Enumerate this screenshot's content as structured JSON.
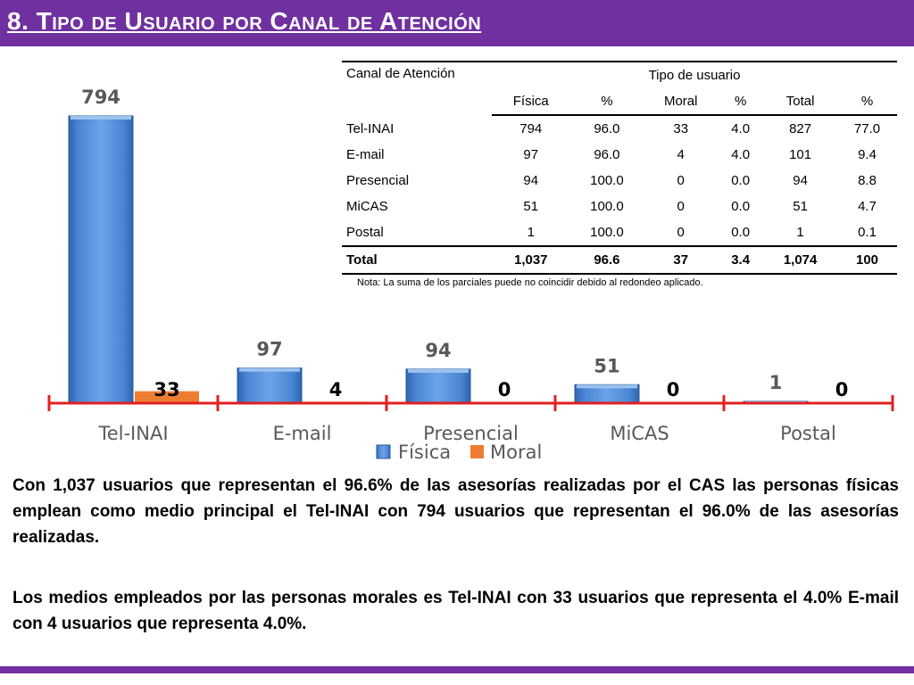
{
  "header": {
    "title": "8. Tipo de Usuario por Canal de Atención"
  },
  "chart_data": {
    "type": "bar",
    "categories": [
      "Tel-INAI",
      "E-mail",
      "Presencial",
      "MiCAS",
      "Postal"
    ],
    "series": [
      {
        "name": "Física",
        "values": [
          794,
          97,
          94,
          51,
          1
        ],
        "color": "#4a86d4"
      },
      {
        "name": "Moral",
        "values": [
          33,
          4,
          0,
          0,
          0
        ],
        "color": "#ed7d31"
      }
    ],
    "ylim": [
      0,
      794
    ],
    "grid": false,
    "legend": "bottom-center",
    "axis_color": "#e02020",
    "label_colors": [
      "#595959",
      "#000000"
    ]
  },
  "table": {
    "header_first": "Canal de Atención",
    "header_group": "Tipo de usuario",
    "subheaders": [
      "Física",
      "%",
      "Moral",
      "%",
      "Total",
      "%"
    ],
    "rows": [
      [
        "Tel-INAI",
        "794",
        "96.0",
        "33",
        "4.0",
        "827",
        "77.0"
      ],
      [
        "E-mail",
        "97",
        "96.0",
        "4",
        "4.0",
        "101",
        "9.4"
      ],
      [
        "Presencial",
        "94",
        "100.0",
        "0",
        "0.0",
        "94",
        "8.8"
      ],
      [
        "MiCAS",
        "51",
        "100.0",
        "0",
        "0.0",
        "51",
        "4.7"
      ],
      [
        "Postal",
        "1",
        "100.0",
        "0",
        "0.0",
        "1",
        "0.1"
      ]
    ],
    "total_row": [
      "Total",
      "1,037",
      "96.6",
      "37",
      "3.4",
      "1,074",
      "100"
    ]
  },
  "note": "Nota: La suma de los parciales puede no coincidir debido al redondeo aplicado.",
  "paragraphs": [
    "Con 1,037 usuarios que representan el 96.6% de las asesorías realizadas por el CAS las personas físicas emplean como medio principal el Tel-INAI con 794 usuarios que representan el 96.0% de las asesorías realizadas.",
    "Los medios empleados por las personas morales es Tel-INAI con 33 usuarios que representa el 4.0%  E-mail con 4 usuarios que representa 4.0%."
  ],
  "colors": {
    "purple": "#7030a0"
  }
}
